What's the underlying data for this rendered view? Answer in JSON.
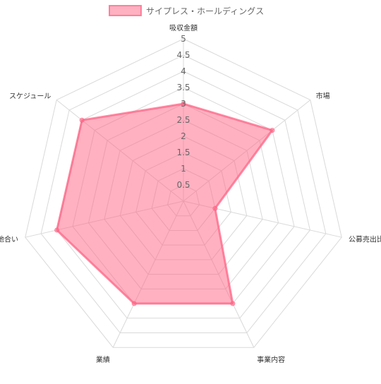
{
  "chart_data": {
    "type": "radar",
    "axes": [
      "吸収金額",
      "市場",
      "公募売出比",
      "事業内容",
      "業績",
      "地合い",
      "スケジュール"
    ],
    "series": [
      {
        "name": "サイプレス・ホールディングス",
        "values": [
          3,
          3.5,
          1,
          3.5,
          3.5,
          4,
          4
        ],
        "fill": "rgba(255,99,132,0.5)",
        "stroke": "rgba(255,99,132,0.75)"
      }
    ],
    "r_range": [
      0,
      5
    ],
    "r_ticks": [
      "0.5",
      "1",
      "1.5",
      "2",
      "2.5",
      "3",
      "3.5",
      "4",
      "4.5",
      "5"
    ],
    "legend_position": "top",
    "grid": true,
    "grid_color": "#d9d9d9"
  }
}
